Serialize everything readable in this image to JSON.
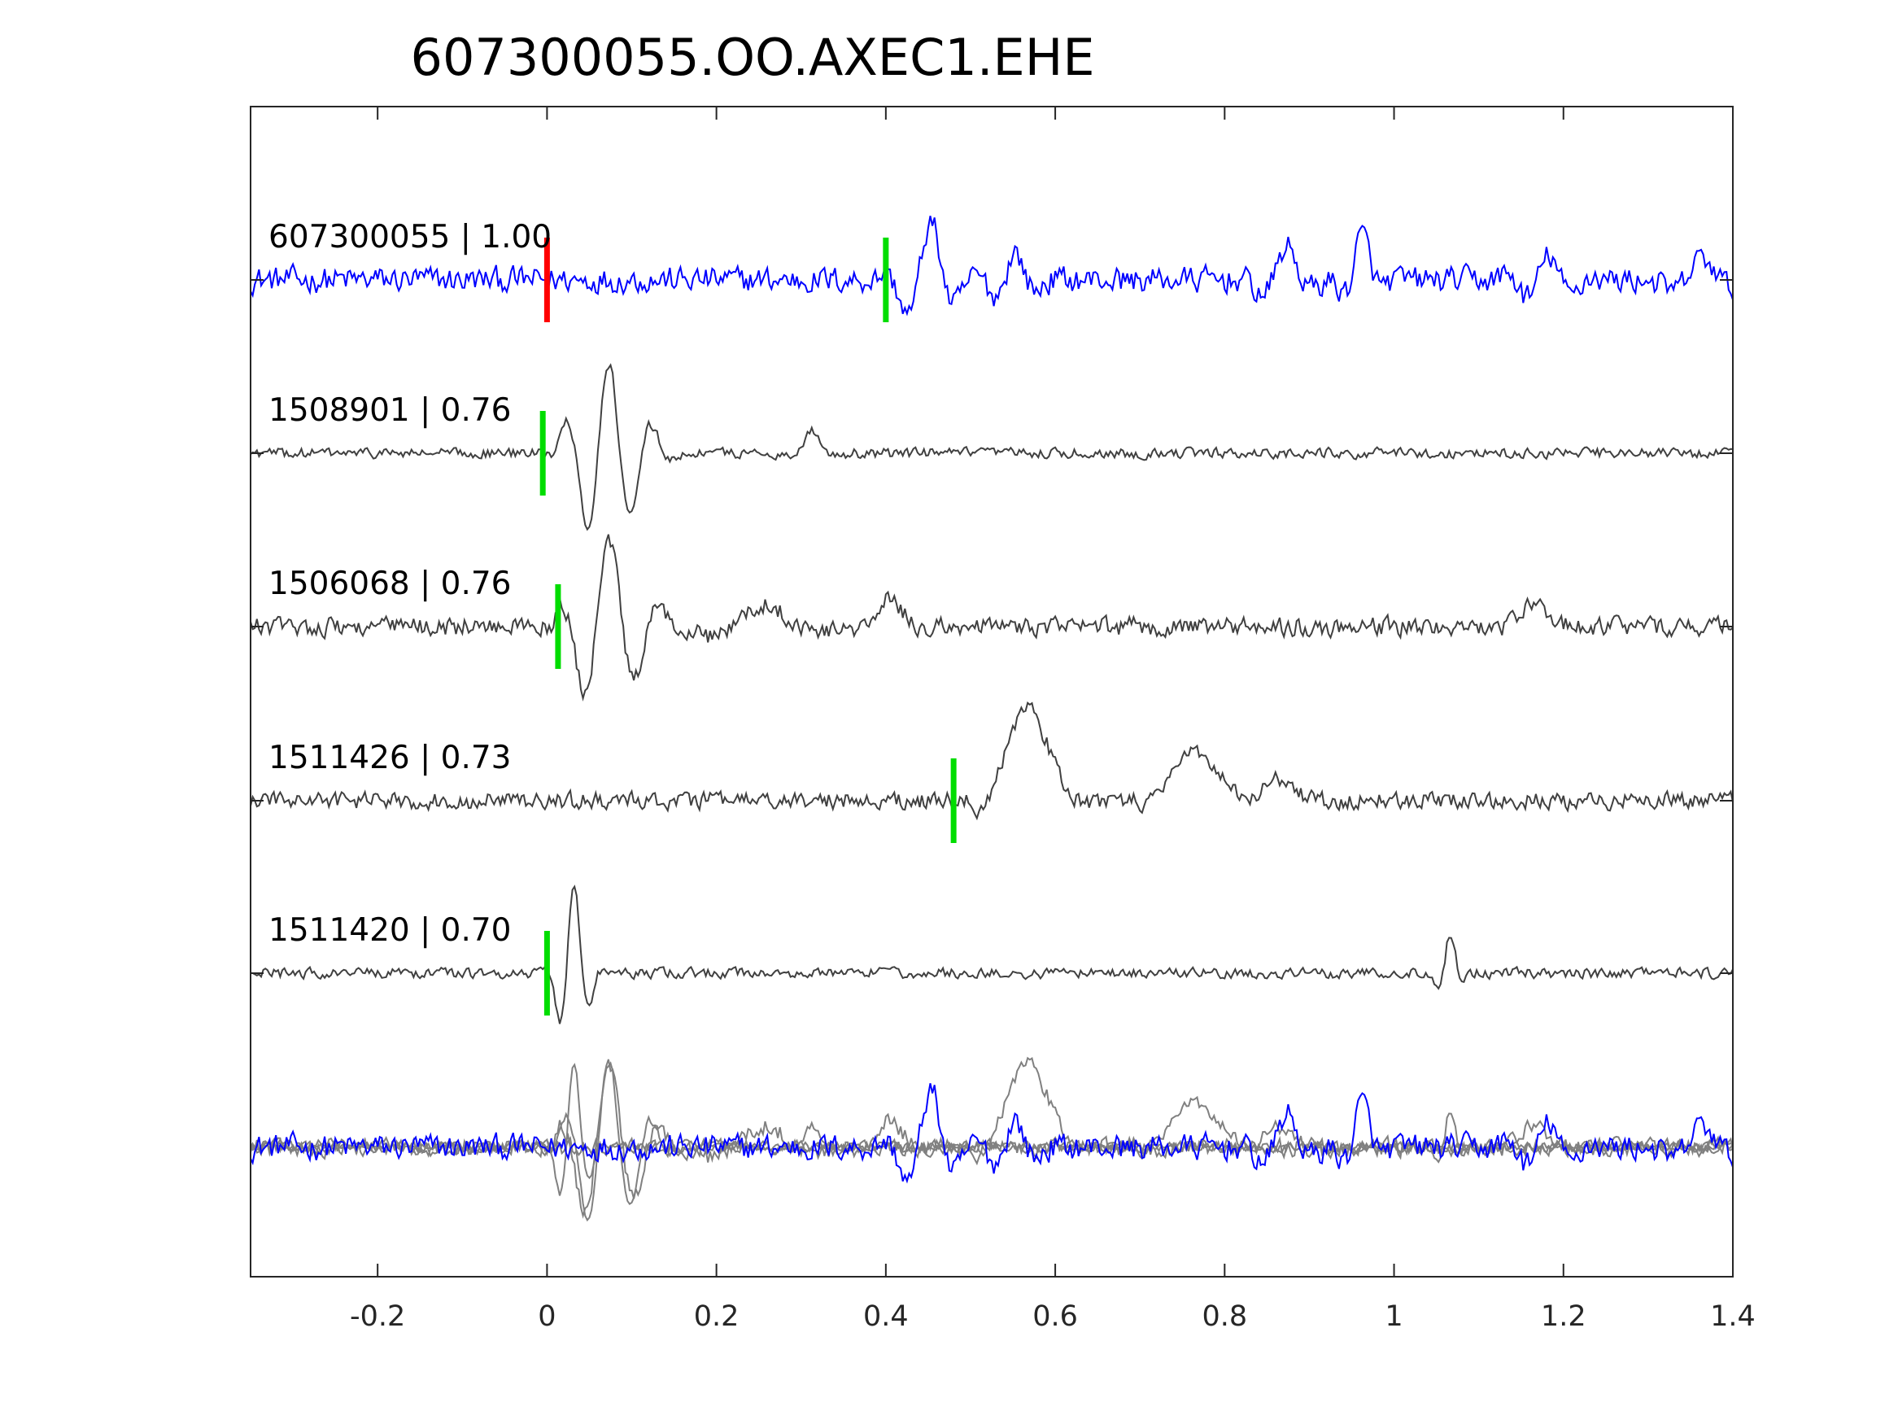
{
  "chart_data": {
    "type": "line",
    "title": "607300055.OO.AXEC1.EHE",
    "xlabel": "",
    "ylabel": "",
    "xlim": [
      -0.35,
      1.4
    ],
    "x_ticks": [
      -0.2,
      0,
      0.2,
      0.4,
      0.6,
      0.8,
      1,
      1.2,
      1.4
    ],
    "x_tick_labels": [
      "-0.2",
      "0",
      "0.2",
      "0.4",
      "0.6",
      "0.8",
      "1",
      "1.2",
      "1.4"
    ],
    "grid": false,
    "colors": {
      "template": "#0000ff",
      "match": "#404040",
      "overlay_match": "#808080",
      "pick_p": "#ff0000",
      "pick_s": "#00dd00"
    },
    "traces": [
      {
        "label": "607300055 | 1.00",
        "id": "607300055",
        "cc": 1.0,
        "role": "template",
        "picks": [
          {
            "t": 0.0,
            "color": "red"
          },
          {
            "t": 0.4,
            "color": "green"
          }
        ],
        "noise": 0.3,
        "events": [
          {
            "t": 0.45,
            "amp": 0.95,
            "width": 0.035,
            "freq": 16
          },
          {
            "t": 0.55,
            "amp": 0.45,
            "width": 0.03,
            "freq": 18
          },
          {
            "t": 0.87,
            "amp": 0.55,
            "width": 0.03,
            "freq": 14
          },
          {
            "t": 0.96,
            "amp": 0.75,
            "width": 0.02,
            "freq": 16
          },
          {
            "t": 1.18,
            "amp": 0.4,
            "width": 0.04,
            "freq": 18
          },
          {
            "t": 1.36,
            "amp": 0.35,
            "width": 0.04,
            "freq": 12
          }
        ]
      },
      {
        "label": "1508901 | 0.76",
        "id": "1508901",
        "cc": 0.76,
        "role": "match",
        "picks": [
          {
            "t": -0.005,
            "color": "green"
          }
        ],
        "noise": 0.08,
        "events": [
          {
            "t": 0.07,
            "amp": 1.0,
            "width": 0.05,
            "freq": 19
          },
          {
            "t": 0.31,
            "amp": 0.25,
            "width": 0.02,
            "freq": 12
          }
        ]
      },
      {
        "label": "1506068 | 0.76",
        "id": "1506068",
        "cc": 0.76,
        "role": "match",
        "picks": [
          {
            "t": 0.013,
            "color": "green"
          }
        ],
        "noise": 0.15,
        "events": [
          {
            "t": 0.07,
            "amp": 0.95,
            "width": 0.05,
            "freq": 16
          },
          {
            "t": 0.25,
            "amp": 0.25,
            "width": 0.06,
            "freq": 6
          },
          {
            "t": 0.4,
            "amp": 0.3,
            "width": 0.03,
            "freq": 8
          },
          {
            "t": 1.16,
            "amp": 0.22,
            "width": 0.04,
            "freq": 6
          }
        ]
      },
      {
        "label": "1511426 | 0.73",
        "id": "1511426",
        "cc": 0.73,
        "role": "match",
        "picks": [
          {
            "t": 0.48,
            "color": "green"
          }
        ],
        "noise": 0.13,
        "events": [
          {
            "t": 0.56,
            "amp": 1.0,
            "width": 0.05,
            "freq": 4.5
          },
          {
            "t": 0.76,
            "amp": 0.55,
            "width": 0.05,
            "freq": 4
          },
          {
            "t": 0.86,
            "amp": 0.25,
            "width": 0.03,
            "freq": 5
          }
        ]
      },
      {
        "label": "1511420 | 0.70",
        "id": "1511420",
        "cc": 0.7,
        "role": "match",
        "picks": [
          {
            "t": 0.0,
            "color": "green"
          }
        ],
        "noise": 0.08,
        "events": [
          {
            "t": 0.03,
            "amp": 1.0,
            "width": 0.02,
            "freq": 26
          },
          {
            "t": 1.065,
            "amp": 0.45,
            "width": 0.015,
            "freq": 28
          }
        ]
      },
      {
        "label": "",
        "id": "overlay",
        "cc": null,
        "role": "overlay",
        "picks": [],
        "noise": 0.0,
        "events": []
      }
    ]
  }
}
